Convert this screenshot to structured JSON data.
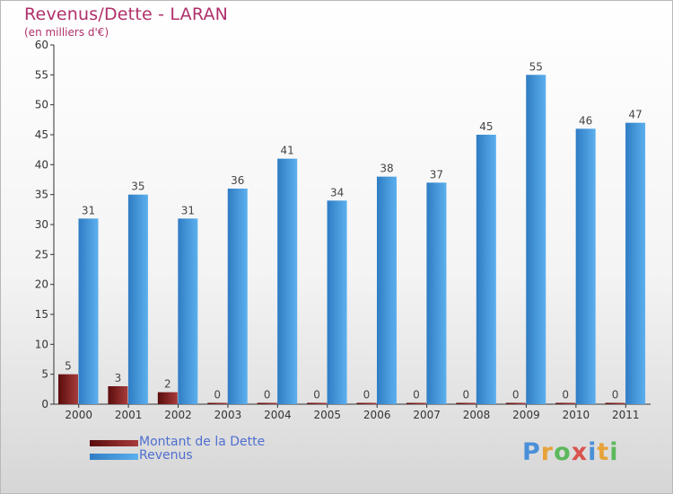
{
  "header": {
    "title": "Revenus/Dette - LARAN",
    "subtitle": "(en milliers d'€)"
  },
  "colors": {
    "title": "#b0306a",
    "debt_dark": "#5a0c0c",
    "debt_light": "#a83c3c",
    "revenue_dark": "#2f7cc4",
    "revenue_light": "#5cb0ee",
    "legend_text": "#4f6fd0"
  },
  "legend": {
    "debt_label": "Montant de la Dette",
    "revenue_label": "Revenus"
  },
  "logo": {
    "text": "Proxiti",
    "letter_colors": [
      "#4a90d9",
      "#e8a23a",
      "#5cb85c",
      "#d9534f",
      "#4a90d9",
      "#e8a23a",
      "#5cb85c"
    ]
  },
  "chart_data": {
    "type": "bar",
    "title": "Revenus/Dette - LARAN",
    "subtitle": "(en milliers d'€)",
    "categories": [
      "2000",
      "2001",
      "2002",
      "2003",
      "2004",
      "2005",
      "2006",
      "2007",
      "2008",
      "2009",
      "2010",
      "2011"
    ],
    "series": [
      {
        "name": "Montant de la Dette",
        "values": [
          5,
          3,
          2,
          0,
          0,
          0,
          0,
          0,
          0,
          0,
          0,
          0
        ]
      },
      {
        "name": "Revenus",
        "values": [
          31,
          35,
          31,
          36,
          41,
          34,
          38,
          37,
          45,
          55,
          46,
          47
        ]
      }
    ],
    "ylim": [
      0,
      60
    ],
    "yticks": [
      0,
      5,
      10,
      15,
      20,
      25,
      30,
      35,
      40,
      45,
      50,
      55,
      60
    ],
    "grid": false,
    "legend_position": "bottom-left"
  }
}
